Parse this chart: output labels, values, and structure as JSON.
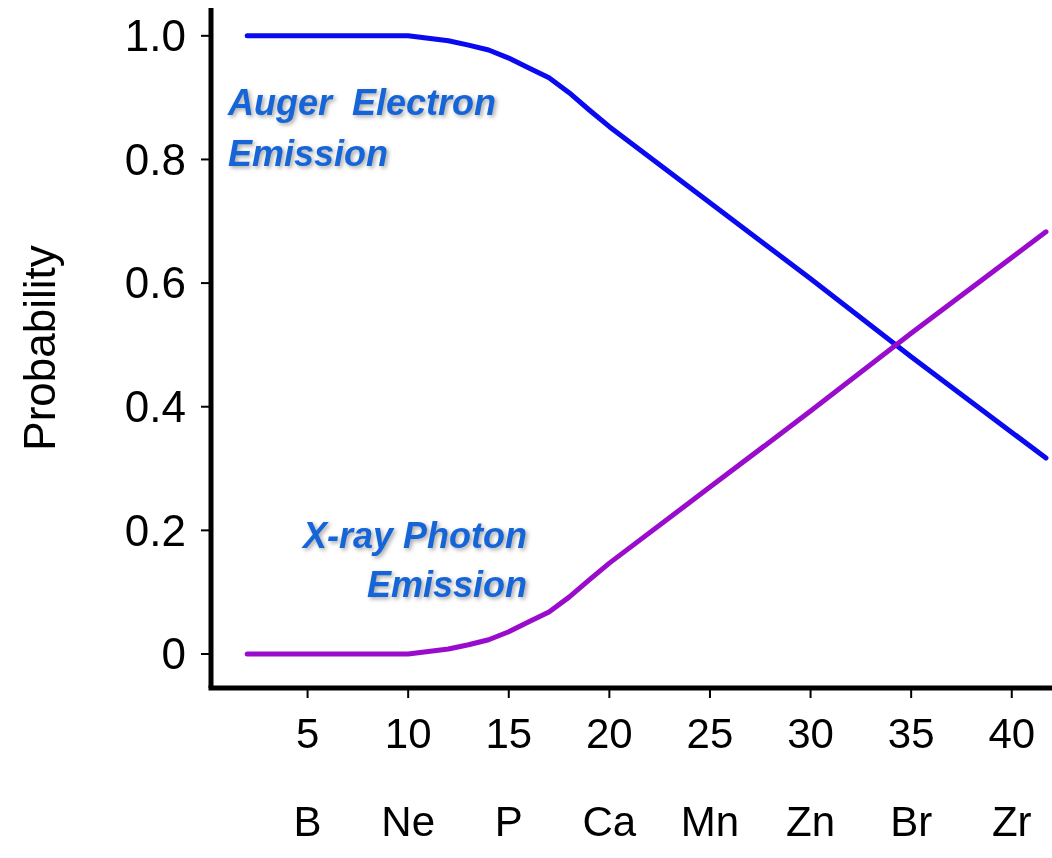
{
  "chart_data": {
    "type": "line",
    "ylabel": "Probability",
    "x": [
      2,
      9,
      10,
      11,
      12,
      13,
      14,
      15,
      16,
      17,
      18,
      19,
      20,
      25,
      30,
      35,
      41.7
    ],
    "series": [
      {
        "name": "Auger  Electron Emission",
        "color": "#0a0af0",
        "values": [
          1,
          1,
          1,
          0.996,
          0.992,
          0.985,
          0.977,
          0.964,
          0.948,
          0.932,
          0.908,
          0.88,
          0.853,
          0.73,
          0.607,
          0.481,
          0.317
        ]
      },
      {
        "name": "X-ray Photon Emission",
        "color": "#9a0ccc",
        "values": [
          0,
          0,
          0,
          0.004,
          0.008,
          0.015,
          0.023,
          0.036,
          0.052,
          0.068,
          0.092,
          0.12,
          0.147,
          0.27,
          0.393,
          0.519,
          0.683
        ]
      }
    ],
    "xlim": [
      0.2,
      42
    ],
    "xticks": [
      5,
      10,
      15,
      20,
      25,
      30,
      35,
      40
    ],
    "annotations": [
      "B",
      "Ne",
      "P",
      "Ca",
      "Mn",
      "Zn",
      "Br",
      "Zr"
    ],
    "ylim": [
      -0.055,
      1.045
    ],
    "yticks": [
      0,
      0.2,
      0.4,
      0.6,
      0.8,
      {
        "value": 1,
        "label": "1.0"
      }
    ],
    "grid": false,
    "marker": "none",
    "line_style": "solid"
  }
}
